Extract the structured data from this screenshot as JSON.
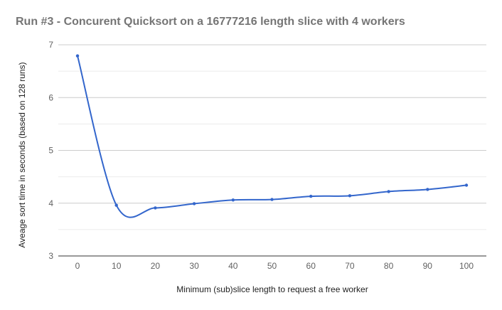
{
  "chart_data": {
    "type": "line",
    "title": "Run #3 - Concurent Quicksort on a 16777216 length slice with 4 workers",
    "xlabel": "Minimum (sub)slice length to request a free worker",
    "ylabel": "Aveage sort time in seconds (based on 128 runs)",
    "x": [
      0,
      10,
      20,
      30,
      40,
      50,
      60,
      70,
      80,
      90,
      100
    ],
    "series": [
      {
        "values": [
          6.79,
          3.96,
          3.91,
          3.99,
          4.06,
          4.07,
          4.13,
          4.14,
          4.22,
          4.26,
          4.34
        ]
      }
    ],
    "xticks": [
      "0",
      "10",
      "20",
      "30",
      "40",
      "50",
      "60",
      "70",
      "80",
      "90",
      "100"
    ],
    "yticks": [
      "3",
      "4",
      "5",
      "6",
      "7"
    ],
    "ylim": [
      3,
      7
    ],
    "xlim": [
      0,
      100
    ],
    "grid": true,
    "legend": "none",
    "line_color": "#3366cc"
  }
}
